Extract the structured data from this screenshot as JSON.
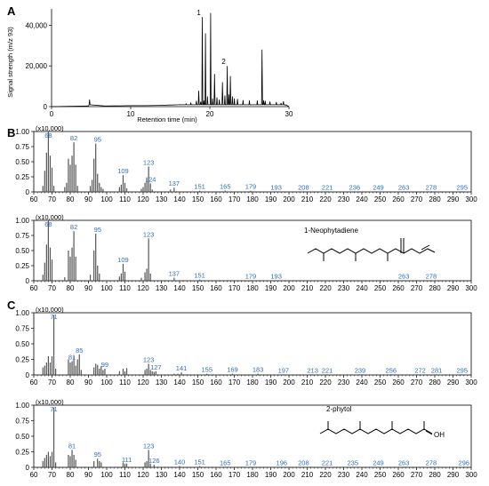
{
  "panel_labels": [
    "A",
    "B",
    "C"
  ],
  "chart_data": [
    {
      "id": "chrom",
      "type": "line",
      "xlabel": "Retention time (min)",
      "ylabel": "Signal strength (m/z 93)",
      "xlim": [
        0,
        30
      ],
      "ylim": [
        0,
        48000
      ],
      "xticks": [
        0,
        10,
        20,
        30
      ],
      "yticks": [
        0,
        20000,
        40000
      ],
      "ytick_labels": [
        "0",
        "20,000",
        "40,000"
      ],
      "grid": false,
      "x": [
        4.6,
        4.8,
        6.8,
        8.5,
        10.2,
        11.8,
        13.6,
        15.0,
        16.2,
        17.0,
        17.6,
        18.3,
        18.6,
        18.85,
        19.05,
        19.25,
        19.45,
        19.7,
        20.1,
        20.35,
        20.6,
        20.9,
        21.2,
        21.6,
        21.9,
        22.2,
        22.4,
        22.6,
        22.85,
        23.1,
        23.5,
        24.2,
        25.0,
        26.0,
        26.6,
        26.8,
        27.0,
        27.6,
        28.4,
        29.0,
        29.3,
        29.6
      ],
      "y": [
        300,
        3500,
        300,
        400,
        500,
        500,
        600,
        800,
        1000,
        1400,
        1800,
        2800,
        7800,
        2400,
        44000,
        3000,
        36000,
        5000,
        46000,
        4000,
        16000,
        4500,
        3500,
        12000,
        5500,
        20000,
        6000,
        15000,
        5000,
        4000,
        3800,
        3200,
        3000,
        3000,
        28000,
        3000,
        2800,
        2500,
        2200,
        1800,
        2600,
        800
      ],
      "peak_labels": [
        {
          "x": 19.05,
          "y": 44000,
          "text": "1"
        },
        {
          "x": 22.2,
          "y": 20000,
          "text": "2"
        }
      ]
    },
    {
      "id": "B1",
      "type": "bar",
      "xlim": [
        60,
        300
      ],
      "ylim": [
        0,
        1.0
      ],
      "xticks": [
        60,
        70,
        80,
        90,
        100,
        110,
        120,
        130,
        140,
        150,
        160,
        170,
        180,
        190,
        200,
        210,
        220,
        230,
        240,
        250,
        260,
        270,
        280,
        290,
        300
      ],
      "yticks": [
        0,
        0.25,
        0.5,
        0.75,
        1.0
      ],
      "ytick_labels": [
        "0",
        "0.25",
        "0.50",
        "0.75",
        "1.00"
      ],
      "scale_label": "(x10,000)",
      "x": [
        65,
        66,
        67,
        68,
        69,
        70,
        71,
        77,
        78,
        79,
        80,
        81,
        82,
        83,
        84,
        91,
        92,
        93,
        94,
        95,
        96,
        97,
        98,
        107,
        108,
        109,
        110,
        111,
        119,
        120,
        121,
        122,
        123,
        124,
        125,
        135,
        137,
        151,
        165,
        179,
        193,
        208,
        221,
        236,
        249,
        263,
        278,
        295
      ],
      "values": [
        0.1,
        0.35,
        0.65,
        1.0,
        0.6,
        0.4,
        0.1,
        0.08,
        0.15,
        0.55,
        0.45,
        0.6,
        0.82,
        0.45,
        0.1,
        0.1,
        0.2,
        0.55,
        0.8,
        0.3,
        0.15,
        0.08,
        0.05,
        0.08,
        0.12,
        0.28,
        0.15,
        0.06,
        0.05,
        0.08,
        0.15,
        0.22,
        0.42,
        0.14,
        0.04,
        0.04,
        0.07,
        0.02,
        0.02,
        0.02,
        0.01,
        0.01,
        0.01,
        0.01,
        0.01,
        0.01,
        0.01,
        0.01
      ],
      "mz_labels": [
        {
          "x": 68,
          "y": 1.0,
          "text": "68"
        },
        {
          "x": 82,
          "y": 0.82,
          "text": "82"
        },
        {
          "x": 95,
          "y": 0.8,
          "text": "95"
        },
        {
          "x": 109,
          "y": 0.28,
          "text": "109"
        },
        {
          "x": 123,
          "y": 0.42,
          "text": "123"
        },
        {
          "x": 124,
          "y": 0.14,
          "text": "124"
        },
        {
          "x": 137,
          "y": 0.07,
          "text": "137"
        },
        {
          "x": 151,
          "y": 0.02,
          "text": "151"
        },
        {
          "x": 165,
          "y": 0.02,
          "text": "165"
        },
        {
          "x": 179,
          "y": 0.02,
          "text": "179"
        },
        {
          "x": 193,
          "y": 0.01,
          "text": "193"
        },
        {
          "x": 208,
          "y": 0.01,
          "text": "208"
        },
        {
          "x": 221,
          "y": 0.01,
          "text": "221"
        },
        {
          "x": 236,
          "y": 0.01,
          "text": "236"
        },
        {
          "x": 249,
          "y": 0.01,
          "text": "249"
        },
        {
          "x": 263,
          "y": 0.01,
          "text": "263"
        },
        {
          "x": 278,
          "y": 0.01,
          "text": "278"
        },
        {
          "x": 295,
          "y": 0.01,
          "text": "295"
        }
      ]
    },
    {
      "id": "B2",
      "type": "bar",
      "xlim": [
        60,
        300
      ],
      "ylim": [
        0,
        1.0
      ],
      "xticks": [
        60,
        70,
        80,
        90,
        100,
        110,
        120,
        130,
        140,
        150,
        160,
        170,
        180,
        190,
        200,
        210,
        220,
        230,
        240,
        250,
        260,
        270,
        280,
        290,
        300
      ],
      "yticks": [
        0,
        0.25,
        0.5,
        0.75,
        1.0
      ],
      "ytick_labels": [
        "0",
        "0.25",
        "0.50",
        "0.75",
        "1.00"
      ],
      "scale_label": "(x10,000)",
      "compound": "1-Neophytadiene",
      "x": [
        65,
        66,
        67,
        68,
        69,
        70,
        77,
        79,
        80,
        81,
        82,
        83,
        91,
        93,
        94,
        95,
        96,
        107,
        108,
        109,
        110,
        119,
        121,
        122,
        123,
        124,
        137,
        151,
        179,
        193,
        263,
        278
      ],
      "values": [
        0.1,
        0.3,
        0.6,
        1.0,
        0.55,
        0.35,
        0.06,
        0.5,
        0.4,
        0.55,
        0.82,
        0.4,
        0.1,
        0.5,
        0.78,
        0.25,
        0.12,
        0.07,
        0.12,
        0.28,
        0.15,
        0.05,
        0.14,
        0.2,
        0.7,
        0.12,
        0.05,
        0.02,
        0.01,
        0.01,
        0.01,
        0.01
      ],
      "mz_labels": [
        {
          "x": 68,
          "y": 1.0,
          "text": "68"
        },
        {
          "x": 82,
          "y": 0.82,
          "text": "82"
        },
        {
          "x": 95,
          "y": 0.78,
          "text": "95"
        },
        {
          "x": 109,
          "y": 0.28,
          "text": "109"
        },
        {
          "x": 123,
          "y": 0.7,
          "text": "123"
        },
        {
          "x": 137,
          "y": 0.05,
          "text": "137"
        },
        {
          "x": 151,
          "y": 0.02,
          "text": "151"
        },
        {
          "x": 179,
          "y": 0.01,
          "text": "179"
        },
        {
          "x": 193,
          "y": 0.01,
          "text": "193"
        },
        {
          "x": 263,
          "y": 0.01,
          "text": "263"
        },
        {
          "x": 278,
          "y": 0.01,
          "text": "278"
        }
      ]
    },
    {
      "id": "C1",
      "type": "bar",
      "xlim": [
        60,
        300
      ],
      "ylim": [
        0,
        1.0
      ],
      "xticks": [
        60,
        70,
        80,
        90,
        100,
        110,
        120,
        130,
        140,
        150,
        160,
        170,
        180,
        190,
        200,
        210,
        220,
        230,
        240,
        250,
        260,
        270,
        280,
        290,
        300
      ],
      "yticks": [
        0,
        0.25,
        0.5,
        0.75,
        1.0
      ],
      "ytick_labels": [
        "0",
        "0.25",
        "0.50",
        "0.75",
        "1.00"
      ],
      "scale_label": "(x10,000)",
      "x": [
        65,
        66,
        67,
        68,
        69,
        70,
        71,
        72,
        79,
        80,
        81,
        82,
        83,
        84,
        85,
        86,
        93,
        94,
        95,
        96,
        97,
        98,
        99,
        107,
        109,
        110,
        111,
        121,
        122,
        123,
        124,
        125,
        126,
        127,
        137,
        139,
        141,
        155,
        169,
        183,
        197,
        213,
        221,
        239,
        256,
        272,
        281,
        295
      ],
      "values": [
        0.12,
        0.15,
        0.2,
        0.3,
        0.2,
        0.3,
        0.96,
        0.1,
        0.25,
        0.2,
        0.22,
        0.3,
        0.15,
        0.25,
        0.33,
        0.08,
        0.12,
        0.18,
        0.16,
        0.1,
        0.14,
        0.08,
        0.1,
        0.06,
        0.1,
        0.06,
        0.11,
        0.08,
        0.1,
        0.18,
        0.08,
        0.06,
        0.05,
        0.06,
        0.02,
        0.02,
        0.04,
        0.02,
        0.02,
        0.02,
        0.01,
        0.01,
        0.01,
        0.01,
        0.01,
        0.01,
        0.01,
        0.01
      ],
      "mz_labels": [
        {
          "x": 71,
          "y": 0.96,
          "text": "71"
        },
        {
          "x": 81,
          "y": 0.22,
          "text": "81"
        },
        {
          "x": 85,
          "y": 0.33,
          "text": "85"
        },
        {
          "x": 99,
          "y": 0.1,
          "text": "99"
        },
        {
          "x": 123,
          "y": 0.18,
          "text": "123"
        },
        {
          "x": 127,
          "y": 0.06,
          "text": "127"
        },
        {
          "x": 141,
          "y": 0.04,
          "text": "141"
        },
        {
          "x": 155,
          "y": 0.02,
          "text": "155"
        },
        {
          "x": 169,
          "y": 0.02,
          "text": "169"
        },
        {
          "x": 183,
          "y": 0.02,
          "text": "183"
        },
        {
          "x": 197,
          "y": 0.01,
          "text": "197"
        },
        {
          "x": 213,
          "y": 0.01,
          "text": "213"
        },
        {
          "x": 221,
          "y": 0.01,
          "text": "221"
        },
        {
          "x": 239,
          "y": 0.01,
          "text": "239"
        },
        {
          "x": 256,
          "y": 0.01,
          "text": "256"
        },
        {
          "x": 272,
          "y": 0.01,
          "text": "272"
        },
        {
          "x": 281,
          "y": 0.01,
          "text": "281"
        },
        {
          "x": 295,
          "y": 0.01,
          "text": "295"
        }
      ]
    },
    {
      "id": "C2",
      "type": "bar",
      "xlim": [
        60,
        300
      ],
      "ylim": [
        0,
        1.0
      ],
      "xticks": [
        60,
        70,
        80,
        90,
        100,
        110,
        120,
        130,
        140,
        150,
        160,
        170,
        180,
        190,
        200,
        210,
        220,
        230,
        240,
        250,
        260,
        270,
        280,
        290,
        300
      ],
      "yticks": [
        0,
        0.25,
        0.5,
        0.75,
        1.0
      ],
      "ytick_labels": [
        "0",
        "0.25",
        "0.50",
        "0.75",
        "1.00"
      ],
      "scale_label": "(x10,000)",
      "compound": "2-phytol",
      "x": [
        65,
        66,
        67,
        68,
        69,
        70,
        71,
        72,
        79,
        80,
        81,
        82,
        83,
        93,
        95,
        96,
        97,
        109,
        110,
        111,
        121,
        122,
        123,
        124,
        126,
        140,
        151,
        165,
        179,
        196,
        208,
        221,
        235,
        249,
        263,
        278,
        296
      ],
      "values": [
        0.1,
        0.15,
        0.2,
        0.25,
        0.18,
        0.25,
        0.96,
        0.08,
        0.2,
        0.18,
        0.28,
        0.2,
        0.12,
        0.1,
        0.14,
        0.1,
        0.08,
        0.08,
        0.06,
        0.06,
        0.08,
        0.1,
        0.28,
        0.06,
        0.04,
        0.02,
        0.02,
        0.01,
        0.01,
        0.01,
        0.01,
        0.01,
        0.01,
        0.01,
        0.01,
        0.01,
        0.01
      ],
      "mz_labels": [
        {
          "x": 71,
          "y": 0.96,
          "text": "71"
        },
        {
          "x": 81,
          "y": 0.28,
          "text": "81"
        },
        {
          "x": 95,
          "y": 0.14,
          "text": "95"
        },
        {
          "x": 111,
          "y": 0.06,
          "text": "111"
        },
        {
          "x": 123,
          "y": 0.28,
          "text": "123"
        },
        {
          "x": 126,
          "y": 0.04,
          "text": "126"
        },
        {
          "x": 140,
          "y": 0.02,
          "text": "140"
        },
        {
          "x": 151,
          "y": 0.02,
          "text": "151"
        },
        {
          "x": 165,
          "y": 0.01,
          "text": "165"
        },
        {
          "x": 179,
          "y": 0.01,
          "text": "179"
        },
        {
          "x": 196,
          "y": 0.01,
          "text": "196"
        },
        {
          "x": 208,
          "y": 0.01,
          "text": "208"
        },
        {
          "x": 221,
          "y": 0.01,
          "text": "221"
        },
        {
          "x": 235,
          "y": 0.01,
          "text": "235"
        },
        {
          "x": 249,
          "y": 0.01,
          "text": "249"
        },
        {
          "x": 263,
          "y": 0.01,
          "text": "263"
        },
        {
          "x": 278,
          "y": 0.01,
          "text": "278"
        },
        {
          "x": 296,
          "y": 0.01,
          "text": "296"
        }
      ]
    }
  ],
  "colors": {
    "chrom_line": "#000000",
    "bar": "#555555",
    "mz_label": "#2f6fc0",
    "axis": "#000000"
  }
}
